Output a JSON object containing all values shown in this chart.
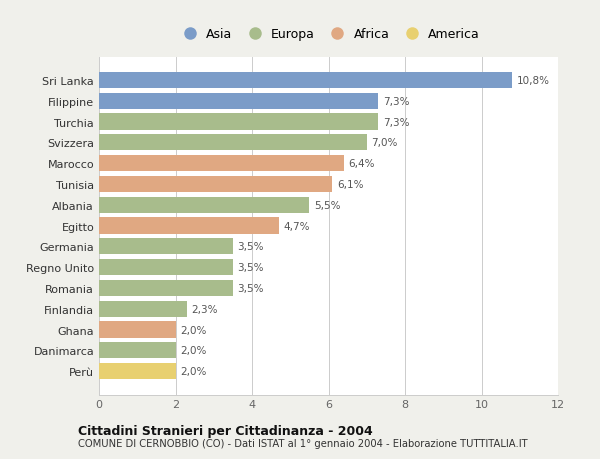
{
  "categories": [
    "Sri Lanka",
    "Filippine",
    "Turchia",
    "Svizzera",
    "Marocco",
    "Tunisia",
    "Albania",
    "Egitto",
    "Germania",
    "Regno Unito",
    "Romania",
    "Finlandia",
    "Ghana",
    "Danimarca",
    "Perù"
  ],
  "values": [
    10.8,
    7.3,
    7.3,
    7.0,
    6.4,
    6.1,
    5.5,
    4.7,
    3.5,
    3.5,
    3.5,
    2.3,
    2.0,
    2.0,
    2.0
  ],
  "labels": [
    "10,8%",
    "7,3%",
    "7,3%",
    "7,0%",
    "6,4%",
    "6,1%",
    "5,5%",
    "4,7%",
    "3,5%",
    "3,5%",
    "3,5%",
    "2,3%",
    "2,0%",
    "2,0%",
    "2,0%"
  ],
  "continents": [
    "Asia",
    "Asia",
    "Europa",
    "Europa",
    "Africa",
    "Africa",
    "Europa",
    "Africa",
    "Europa",
    "Europa",
    "Europa",
    "Europa",
    "Africa",
    "Europa",
    "America"
  ],
  "colors": {
    "Asia": "#7b9cc8",
    "Europa": "#a8bc8c",
    "Africa": "#e0a882",
    "America": "#e8d070"
  },
  "legend_labels": [
    "Asia",
    "Europa",
    "Africa",
    "America"
  ],
  "xlim": [
    0,
    12
  ],
  "xticks": [
    0,
    2,
    4,
    6,
    8,
    10,
    12
  ],
  "title1": "Cittadini Stranieri per Cittadinanza - 2004",
  "title2": "COMUNE DI CERNOBBIO (CO) - Dati ISTAT al 1° gennaio 2004 - Elaborazione TUTTITALIA.IT",
  "background_color": "#f0f0eb",
  "bar_background": "#ffffff",
  "grid_color": "#cccccc"
}
